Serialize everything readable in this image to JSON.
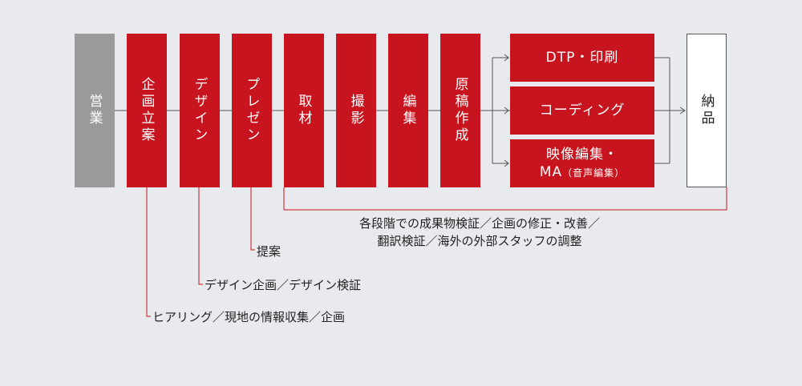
{
  "stages": {
    "sales": "営業",
    "planning": "企画立案",
    "design": "デザイン",
    "presentation": "プレゼン",
    "interview": "取材",
    "photography": "撮影",
    "editing": "編集",
    "manuscript": "原稿作成",
    "delivery": "納品"
  },
  "branches": {
    "dtp": "DTP・印刷",
    "coding": "コーディング",
    "video_main": "映像編集・",
    "video_ma": "MA",
    "video_ma_note": "（音声編集）"
  },
  "notes": {
    "verification": "各段階での成果物検証／企画の修正・改善／\n翻訳検証／海外の外部スタッフの調整",
    "proposal": "提案",
    "design_tasks": "デザイン企画／デザイン検証",
    "planning_tasks": "ヒアリング／現地の情報収集／企画"
  },
  "colors": {
    "accent": "#c8141e",
    "sales_box": "#9a9a9a",
    "background": "#e8eaed"
  }
}
